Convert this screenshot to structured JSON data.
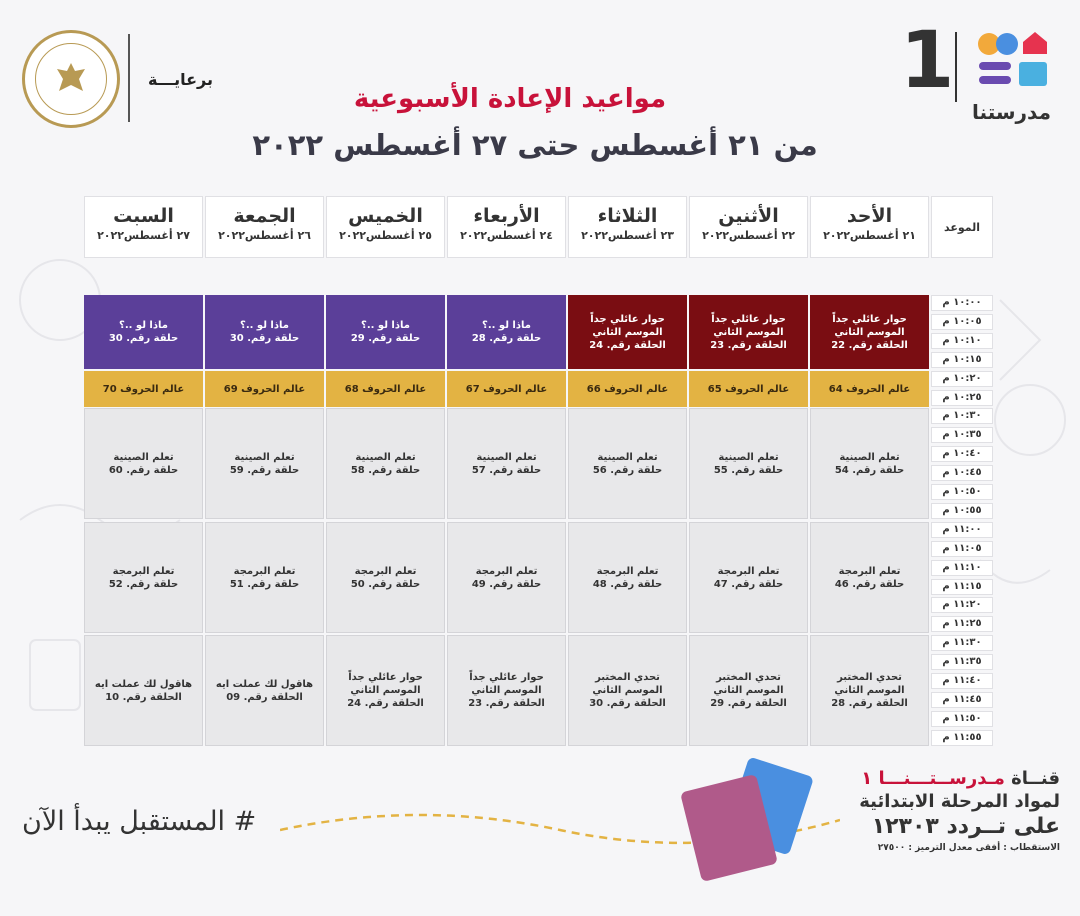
{
  "header": {
    "sponsor": "برعايـــة",
    "title": "مواعيد الإعادة الأسبوعية",
    "subtitle": "من ٢١ أغسطس حتى ٢٧ أغسطس ٢٠٢٢",
    "channel_number": "1",
    "logo_text": "مدرستنا",
    "ministry_seal": "MINISTRY OF EDUCATION AND TECHNICAL EDUCATION"
  },
  "schedule": {
    "time_header": "الموعد",
    "days": [
      {
        "name": "الأحد",
        "date": "٢١ أغسطس٢٠٢٢"
      },
      {
        "name": "الأثنين",
        "date": "٢٢ أغسطس٢٠٢٢"
      },
      {
        "name": "الثلاثاء",
        "date": "٢٣ أغسطس٢٠٢٢"
      },
      {
        "name": "الأربعاء",
        "date": "٢٤ أغسطس٢٠٢٢"
      },
      {
        "name": "الخميس",
        "date": "٢٥ أغسطس٢٠٢٢"
      },
      {
        "name": "الجمعة",
        "date": "٢٦ أغسطس٢٠٢٢"
      },
      {
        "name": "السبت",
        "date": "٢٧ أغسطس٢٠٢٢"
      }
    ],
    "times": [
      "١٠:٠٠ م",
      "١٠:٠٥ م",
      "١٠:١٠ م",
      "١٠:١٥ م",
      "١٠:٢٠ م",
      "١٠:٢٥ م",
      "١٠:٣٠ م",
      "١٠:٣٥ م",
      "١٠:٤٠ م",
      "١٠:٤٥ م",
      "١٠:٥٠ م",
      "١٠:٥٥ م",
      "١١:٠٠ م",
      "١١:٠٥ م",
      "١١:١٠ م",
      "١١:١٥ م",
      "١١:٢٠ م",
      "١١:٢٥ م",
      "١١:٣٠ م",
      "١١:٣٥ م",
      "١١:٤٠ م",
      "١١:٤٥ م",
      "١١:٥٠ م",
      "١١:٥٥ م"
    ],
    "rows": [
      {
        "color": "block1",
        "cells": [
          {
            "t1": "حوار عائلي جداً الموسم الثاني",
            "t2": "الحلقة رقم. 22",
            "color": "maroon"
          },
          {
            "t1": "حوار عائلي جداً الموسم الثاني",
            "t2": "الحلقة رقم. 23",
            "color": "maroon"
          },
          {
            "t1": "حوار عائلي جداً الموسم الثاني",
            "t2": "الحلقة رقم. 24",
            "color": "maroon"
          },
          {
            "t1": "ماذا لو ..؟",
            "t2": "حلقة رقم. 28",
            "color": "purple"
          },
          {
            "t1": "ماذا لو ..؟",
            "t2": "حلقة رقم. 29",
            "color": "purple"
          },
          {
            "t1": "ماذا لو ..؟",
            "t2": "حلقة رقم. 30",
            "color": "purple"
          },
          {
            "t1": "ماذا لو ..؟",
            "t2": "حلقة رقم. 30",
            "color": "purple"
          }
        ]
      },
      {
        "color": "block2",
        "cells": [
          {
            "t1": "عالم الحروف 64",
            "t2": "",
            "color": "gold"
          },
          {
            "t1": "عالم الحروف 65",
            "t2": "",
            "color": "gold"
          },
          {
            "t1": "عالم الحروف 66",
            "t2": "",
            "color": "gold"
          },
          {
            "t1": "عالم الحروف 67",
            "t2": "",
            "color": "gold"
          },
          {
            "t1": "عالم الحروف 68",
            "t2": "",
            "color": "gold"
          },
          {
            "t1": "عالم الحروف 69",
            "t2": "",
            "color": "gold"
          },
          {
            "t1": "عالم الحروف 70",
            "t2": "",
            "color": "gold"
          }
        ]
      },
      {
        "color": "block3",
        "cells": [
          {
            "t1": "تعلم الصينية",
            "t2": "حلقة رقم. 54",
            "color": "grey"
          },
          {
            "t1": "تعلم الصينية",
            "t2": "حلقة رقم. 55",
            "color": "grey"
          },
          {
            "t1": "تعلم الصينية",
            "t2": "حلقة رقم. 56",
            "color": "grey"
          },
          {
            "t1": "تعلم الصينية",
            "t2": "حلقة رقم. 57",
            "color": "grey"
          },
          {
            "t1": "تعلم الصينية",
            "t2": "حلقة رقم. 58",
            "color": "grey"
          },
          {
            "t1": "تعلم الصينية",
            "t2": "حلقة رقم. 59",
            "color": "grey"
          },
          {
            "t1": "تعلم الصينية",
            "t2": "حلقة رقم. 60",
            "color": "grey"
          }
        ]
      },
      {
        "color": "block4",
        "cells": [
          {
            "t1": "تعلم البرمجة",
            "t2": "حلقة رقم. 46",
            "color": "grey"
          },
          {
            "t1": "تعلم البرمجة",
            "t2": "حلقة رقم. 47",
            "color": "grey"
          },
          {
            "t1": "تعلم البرمجة",
            "t2": "حلقة رقم. 48",
            "color": "grey"
          },
          {
            "t1": "تعلم البرمجة",
            "t2": "حلقة رقم. 49",
            "color": "grey"
          },
          {
            "t1": "تعلم البرمجة",
            "t2": "حلقة رقم. 50",
            "color": "grey"
          },
          {
            "t1": "تعلم البرمجة",
            "t2": "حلقة رقم. 51",
            "color": "grey"
          },
          {
            "t1": "تعلم البرمجة",
            "t2": "حلقة رقم. 52",
            "color": "grey"
          }
        ]
      },
      {
        "color": "block5",
        "cells": [
          {
            "t1": "تحدي المختبر الموسم الثاني",
            "t2": "الحلقة رقم. 28",
            "color": "grey"
          },
          {
            "t1": "تحدي المختبر الموسم الثاني",
            "t2": "الحلقة رقم. 29",
            "color": "grey"
          },
          {
            "t1": "تحدي المختبر الموسم الثاني",
            "t2": "الحلقة رقم. 30",
            "color": "grey"
          },
          {
            "t1": "حوار عائلي جداً الموسم الثاني",
            "t2": "الحلقة رقم. 23",
            "color": "grey"
          },
          {
            "t1": "حوار عائلي جداً الموسم الثاني",
            "t2": "الحلقة رقم. 24",
            "color": "grey"
          },
          {
            "t1": "هاقول لك عملت ايه",
            "t2": "الحلقة رقم. 09",
            "color": "grey"
          },
          {
            "t1": "هاقول لك عملت ايه",
            "t2": "الحلقة رقم. 10",
            "color": "grey"
          }
        ]
      }
    ]
  },
  "footer": {
    "hashtag": "# المستقبل يبدأ الآن",
    "channel_prefix": "قنــاة ",
    "channel_name": "مـدرســتـــنـــا ١",
    "line2": "لمواد المرحلة الابتدائية",
    "line3": "على تــردد ١٢٣٠٣",
    "line4": "الاستقطاب : أفقى معدل الترميز : ٢٧٥٠٠"
  },
  "colors": {
    "purple": "#5b3f99",
    "maroon": "#7a0d12",
    "gold": "#e3b343",
    "grey": "#e8e8ea",
    "title_red": "#c8123a"
  }
}
